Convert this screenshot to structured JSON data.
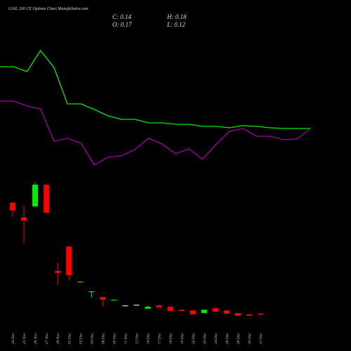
{
  "header": {
    "title": "GAIL 200 CE Options Chart MunafaSutra.com",
    "close": "C: 0.14",
    "high": "H: 0.18",
    "open": "O: 0.17",
    "low": "L: 0.12"
  },
  "chart_data": [
    {
      "type": "line",
      "ylim": [
        0,
        300
      ],
      "series": [
        {
          "color": "#00ee00",
          "values": [
            205,
            205,
            198,
            228,
            204,
            152,
            152,
            144,
            135,
            130,
            130,
            125,
            125,
            123,
            123,
            120,
            120,
            118,
            121,
            120,
            118,
            117,
            117,
            117
          ]
        },
        {
          "color": "#a000a0",
          "values": [
            156,
            156,
            149,
            145,
            99,
            103,
            96,
            65,
            76,
            78,
            87,
            103,
            95,
            81,
            88,
            73,
            94,
            113,
            117,
            106,
            106,
            101,
            102,
            116
          ]
        }
      ]
    },
    {
      "type": "candlestick",
      "ylim": [
        0,
        4.2
      ],
      "up_color": "#00ee00",
      "down_color": "#ff0000",
      "flat_color": "#dddddd",
      "categories": [
        "24 Nov",
        "25 Nov",
        "26 Nov",
        "27 Nov",
        "28 Nov",
        "01 Dec",
        "02 Dec",
        "04 Dec",
        "08 Dec",
        "09 Dec",
        "11 Dec",
        "12 Dec",
        "16 Dec",
        "17 Dec",
        "18 Dec",
        "19 Dec",
        "22 Dec",
        "23 Dec",
        "24 Dec",
        "26 Dec",
        "29 Dec",
        "30 Dec",
        "31 Dec"
      ],
      "open": [
        3.49,
        3.05,
        3.38,
        4.03,
        1.45,
        2.18,
        1.11,
        0.82,
        0.67,
        0.57,
        0.42,
        0.44,
        0.32,
        0.42,
        0.38,
        0.29,
        0.27,
        0.19,
        0.34,
        0.27,
        0.19,
        0.15,
        0.17
      ],
      "high": [
        3.51,
        3.4,
        4.1,
        4.05,
        1.7,
        2.18,
        1.13,
        0.84,
        0.67,
        0.59,
        0.42,
        0.44,
        0.4,
        0.44,
        0.38,
        0.29,
        0.27,
        0.29,
        0.34,
        0.27,
        0.19,
        0.15,
        0.18
      ],
      "low": [
        3.07,
        2.27,
        3.38,
        3.19,
        1.03,
        1.16,
        1.11,
        0.65,
        0.38,
        0.57,
        0.42,
        0.44,
        0.32,
        0.36,
        0.25,
        0.25,
        0.15,
        0.19,
        0.23,
        0.17,
        0.11,
        0.11,
        0.12
      ],
      "close": [
        3.26,
        2.96,
        4.03,
        3.19,
        1.39,
        1.32,
        1.13,
        0.84,
        0.59,
        0.59,
        0.42,
        0.44,
        0.38,
        0.36,
        0.25,
        0.25,
        0.15,
        0.29,
        0.23,
        0.17,
        0.11,
        0.11,
        0.14
      ]
    }
  ]
}
